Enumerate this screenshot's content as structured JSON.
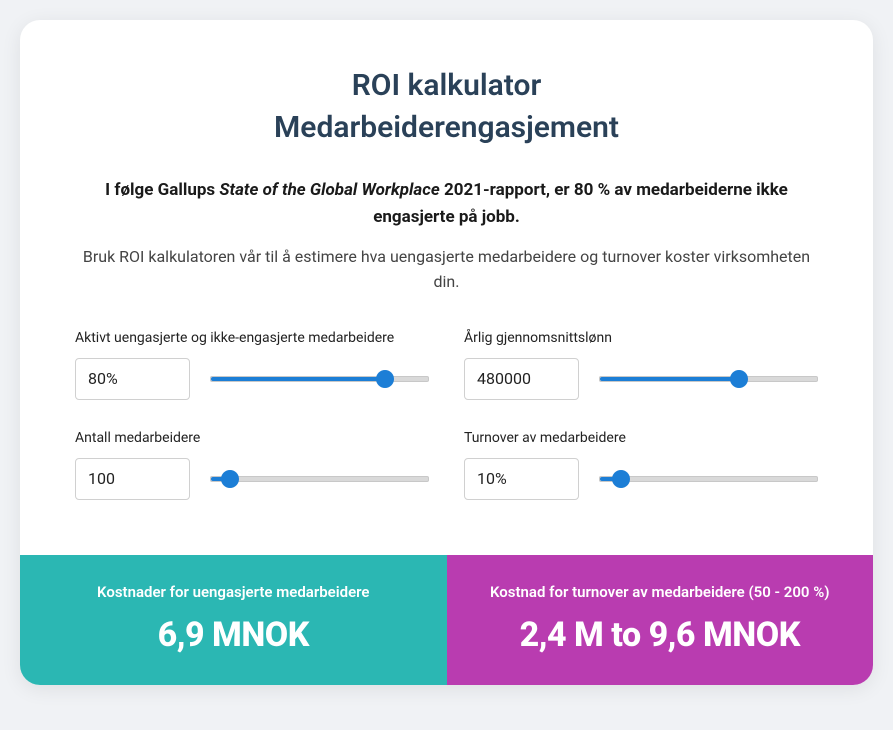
{
  "card": {
    "title_line1": "ROI kalkulator",
    "title_line2": "Medarbeiderengasjement",
    "subtitle_bold_prefix": "I følge Gallups ",
    "subtitle_bold_italic": "State of the Global Workplace",
    "subtitle_bold_suffix": " 2021-rapport, er 80 % av medarbeiderne ikke engasjerte på jobb.",
    "subtitle_normal": "Bruk ROI kalkulatoren vår til å estimere hva uengasjerte medarbeidere og turnover koster virksomheten din.",
    "colors": {
      "title": "#2a4158",
      "slider_active": "#1c7ed6",
      "slider_track": "#d9d9d9",
      "result_left_bg": "#2bb7b3",
      "result_right_bg": "#b93cb0",
      "card_bg": "#ffffff"
    }
  },
  "inputs": {
    "disengaged": {
      "label": "Aktivt uengasjerte og ikke-engasjerte medarbeidere",
      "value": "80%",
      "slider_percent": 80
    },
    "salary": {
      "label": "Årlig gjennomsnittslønn",
      "value": "480000",
      "slider_percent": 64
    },
    "employees": {
      "label": "Antall medarbeidere",
      "value": "100",
      "slider_percent": 9
    },
    "turnover": {
      "label": "Turnover av medarbeidere",
      "value": "10%",
      "slider_percent": 10
    }
  },
  "results": {
    "left": {
      "label": "Kostnader for uengasjerte medarbeidere",
      "value": "6,9 MNOK"
    },
    "right": {
      "label": "Kostnad for turnover av medarbeidere (50 - 200 %)",
      "value": "2,4 M to 9,6 MNOK"
    }
  }
}
